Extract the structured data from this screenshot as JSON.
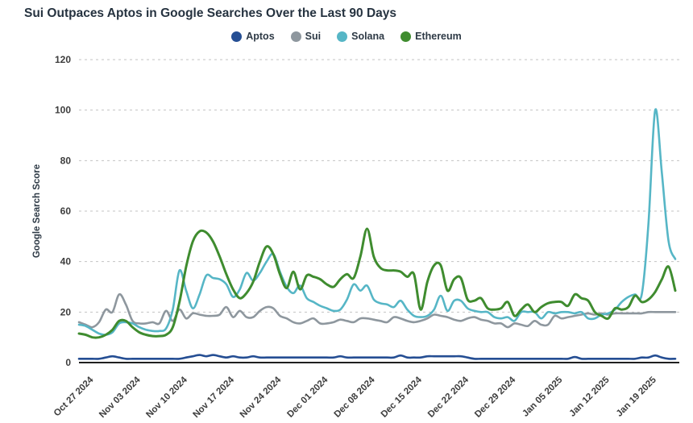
{
  "title": "Sui Outpaces Aptos in Google Searches Over the Last 90 Days",
  "axis": {
    "y_label": "Google Search Score",
    "y_ticks": [
      0,
      20,
      40,
      60,
      80,
      100,
      120
    ],
    "x_tick_labels": [
      "Oct 27 2024",
      "Nov 03 2024",
      "Nov 10 2024",
      "Nov 17 2024",
      "Nov 24 2024",
      "Dec 01 2024",
      "Dec 08 2024",
      "Dec 15 2024",
      "Dec 22 2024",
      "Dec 29 2024",
      "Jan 05 2025",
      "Jan 12 2025",
      "Jan 19 2025"
    ]
  },
  "colors": {
    "aptos": "#254E93",
    "sui": "#8E979E",
    "solana": "#56B6C6",
    "ethereum": "#3F8C2F",
    "gridline": "#c3c3c3",
    "axis_line": "#1f1f1f",
    "title_text": "#263340",
    "tick_text": "#3d3d3d"
  },
  "chart_data": {
    "type": "line",
    "title": "Sui Outpaces Aptos in Google Searches Over the Last 90 Days",
    "xlabel": "",
    "ylabel": "Google Search Score",
    "ylim": [
      0,
      120
    ],
    "yticks": [
      0,
      20,
      40,
      60,
      80,
      100,
      120
    ],
    "grid": "horizontal-dashed",
    "legend_position": "top-center",
    "n_points": 90,
    "x_start_date": "Oct 26 2024",
    "x_tick_labels": [
      "Oct 27 2024",
      "Nov 03 2024",
      "Nov 10 2024",
      "Nov 17 2024",
      "Nov 24 2024",
      "Dec 01 2024",
      "Dec 08 2024",
      "Dec 15 2024",
      "Dec 22 2024",
      "Dec 29 2024",
      "Jan 05 2025",
      "Jan 12 2025",
      "Jan 19 2025"
    ],
    "x_tick_indices": [
      1,
      8,
      15,
      22,
      29,
      36,
      43,
      50,
      57,
      64,
      71,
      78,
      85
    ],
    "series": [
      {
        "name": "Aptos",
        "color": "#254E93",
        "stroke_width": 2.6,
        "values": [
          1.5,
          1.5,
          1.5,
          1.5,
          2,
          2.5,
          2,
          1.5,
          1.5,
          1.5,
          1.5,
          1.5,
          1.5,
          1.5,
          1.5,
          1.5,
          2,
          2.5,
          3,
          2.5,
          3,
          2.5,
          2,
          2.5,
          2,
          2,
          2.5,
          2,
          2,
          2,
          2,
          2,
          2,
          2,
          2,
          2,
          2,
          2,
          2,
          2.5,
          2,
          2,
          2,
          2,
          2,
          2,
          2,
          2,
          2.8,
          2,
          2,
          2,
          2.5,
          2.5,
          2.5,
          2.5,
          2.5,
          2.5,
          2,
          1.5,
          1.5,
          1.5,
          1.5,
          1.5,
          1.5,
          1.5,
          1.5,
          1.5,
          1.5,
          1.5,
          1.5,
          1.5,
          1.5,
          1.5,
          2.2,
          1.5,
          1.5,
          1.5,
          1.5,
          1.5,
          1.5,
          1.5,
          1.5,
          1.5,
          2,
          2,
          2.8,
          2,
          1.5,
          1.5
        ]
      },
      {
        "name": "Sui",
        "color": "#8E979E",
        "stroke_width": 2.6,
        "values": [
          16,
          15,
          14,
          16,
          21,
          20,
          27,
          23,
          16.5,
          15.5,
          15.5,
          16,
          15.5,
          20.5,
          16.5,
          21,
          17.5,
          19.5,
          19,
          18.5,
          18.5,
          19,
          22,
          18,
          20.5,
          18,
          18,
          20.5,
          22,
          21.5,
          18.5,
          17.5,
          16,
          15.5,
          16.5,
          17.5,
          15.5,
          15.5,
          16,
          17,
          16.5,
          16,
          17.5,
          17.5,
          17,
          16.5,
          16,
          18,
          17.5,
          16.5,
          16,
          16.5,
          17.5,
          19,
          18.5,
          18,
          17,
          16.5,
          17.5,
          18,
          17,
          16.5,
          15.5,
          15.5,
          14,
          15.5,
          15,
          14.5,
          16.5,
          15,
          15,
          18.5,
          17.5,
          18,
          18.5,
          19,
          19.5,
          19,
          19.5,
          19,
          19.5,
          19.5,
          19.5,
          19.5,
          19.5,
          20,
          20,
          20,
          20,
          20
        ]
      },
      {
        "name": "Solana",
        "color": "#56B6C6",
        "stroke_width": 2.6,
        "values": [
          15,
          14.5,
          13,
          11.5,
          11,
          12,
          15.5,
          16,
          15.5,
          14,
          13,
          12.5,
          12.5,
          13.5,
          21,
          36.5,
          28.5,
          21.5,
          27,
          34.5,
          33.5,
          33,
          31,
          26,
          29,
          35.5,
          32.5,
          35.5,
          40,
          43,
          36,
          30,
          27.5,
          30.5,
          25.5,
          24,
          22.5,
          21.5,
          20.5,
          21,
          25,
          31,
          28.5,
          30.5,
          25,
          23.5,
          23,
          22,
          24.5,
          21,
          18.5,
          18,
          18.5,
          21,
          26.5,
          20.5,
          24.5,
          24.5,
          21.5,
          20.5,
          20,
          20,
          18,
          17.5,
          18,
          16.5,
          20,
          20,
          20,
          17.5,
          20,
          19.5,
          20,
          20,
          19.5,
          20,
          17.5,
          17.5,
          19,
          19.5,
          21,
          24,
          26,
          27,
          27,
          55,
          100,
          75,
          48,
          41
        ]
      },
      {
        "name": "Ethereum",
        "color": "#3F8C2F",
        "stroke_width": 3,
        "values": [
          11.5,
          11,
          10,
          10,
          11,
          13,
          16.5,
          16.5,
          14,
          12,
          11,
          10.5,
          10.5,
          11,
          14,
          24,
          38,
          48,
          52,
          51.5,
          48,
          42,
          35,
          29,
          25.5,
          27.5,
          32,
          40,
          46,
          43,
          35,
          29.5,
          36,
          29,
          34.5,
          34,
          33,
          31,
          30,
          33,
          35,
          33.5,
          42,
          53,
          42,
          37.5,
          36.5,
          36.5,
          36,
          34,
          35,
          21,
          32,
          38.5,
          38.5,
          28.5,
          33,
          33.5,
          25,
          24.5,
          25.5,
          21.5,
          21,
          21.5,
          24,
          18.5,
          21,
          23,
          20,
          22,
          23.5,
          24,
          24,
          22.5,
          27,
          25.5,
          24.5,
          20,
          18.5,
          17.5,
          21.5,
          21,
          22,
          26.5,
          24,
          25,
          28,
          33,
          38,
          28.5
        ]
      }
    ]
  }
}
